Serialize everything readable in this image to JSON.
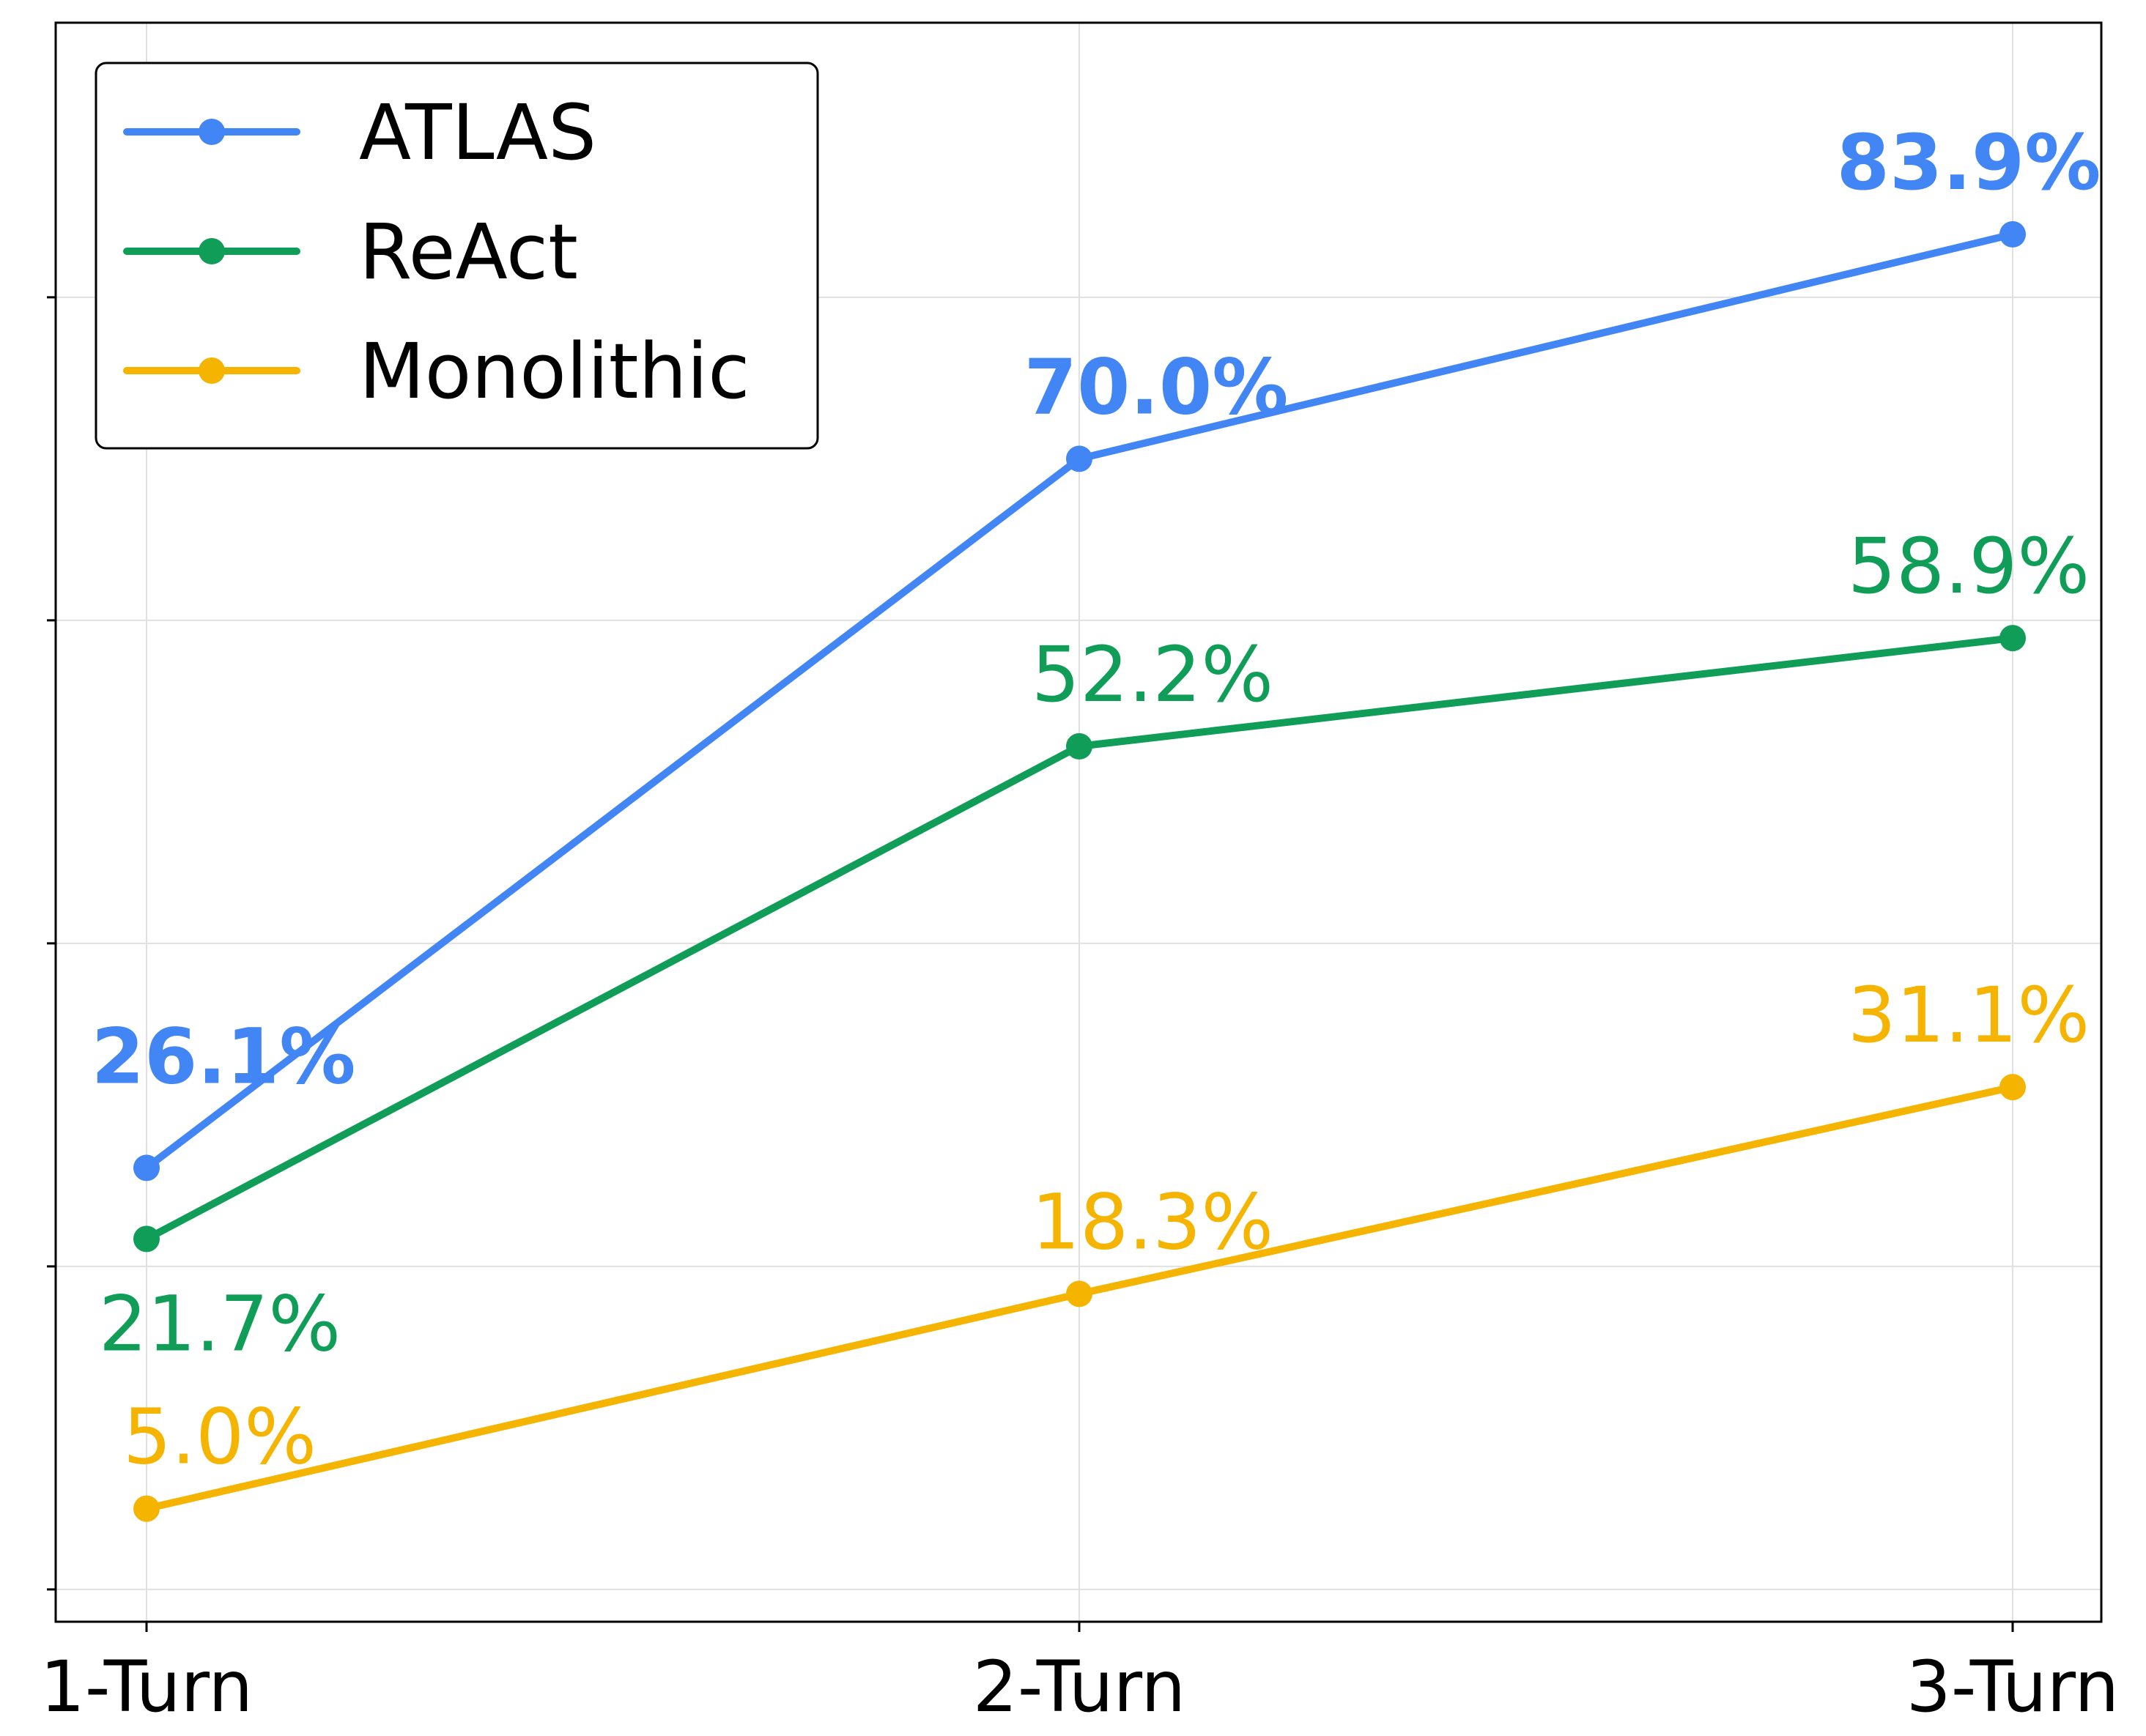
{
  "chart_data": {
    "type": "line",
    "title": "",
    "xlabel": "",
    "ylabel": "",
    "categories": [
      "1-Turn",
      "2-Turn",
      "3-Turn"
    ],
    "ylim": [
      -2,
      97
    ],
    "grid": true,
    "legend_position": "top-left",
    "series": [
      {
        "name": "ATLAS",
        "color": "#4285F4",
        "values": [
          26.1,
          70.0,
          83.9
        ],
        "labels": [
          "26.1%",
          "70.0%",
          "83.9%"
        ],
        "bold_labels": true
      },
      {
        "name": "ReAct",
        "color": "#0F9D58",
        "values": [
          21.7,
          52.2,
          58.9
        ],
        "labels": [
          "21.7%",
          "52.2%",
          "58.9%"
        ],
        "bold_labels": false
      },
      {
        "name": "Monolithic",
        "color": "#F4B400",
        "values": [
          5.0,
          18.3,
          31.1
        ],
        "labels": [
          "5.0%",
          "18.3%",
          "31.1%"
        ],
        "bold_labels": false
      }
    ]
  }
}
